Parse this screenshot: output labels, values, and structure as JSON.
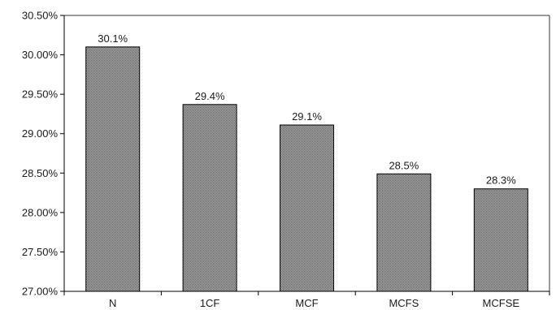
{
  "chart_data": {
    "type": "bar",
    "categories": [
      "N",
      "1CF",
      "MCF",
      "MCFS",
      "MCFSE"
    ],
    "values": [
      30.1,
      29.37,
      29.11,
      28.49,
      28.3
    ],
    "data_labels": [
      "30.1%",
      "29.4%",
      "29.1%",
      "28.5%",
      "28.3%"
    ],
    "ylim": [
      27.0,
      30.5
    ],
    "yticks": [
      27.0,
      27.5,
      28.0,
      28.5,
      29.0,
      29.5,
      30.0,
      30.5
    ],
    "ytick_labels": [
      "27.00%",
      "27.50%",
      "28.00%",
      "28.50%",
      "29.00%",
      "29.50%",
      "30.00%",
      "30.50%"
    ],
    "title": "",
    "xlabel": "",
    "ylabel": "",
    "grid": false,
    "legend": "none",
    "colors": {
      "bar_fill": "#8c8c8c",
      "bar_stroke": "#000000",
      "axis": "#000000"
    }
  }
}
